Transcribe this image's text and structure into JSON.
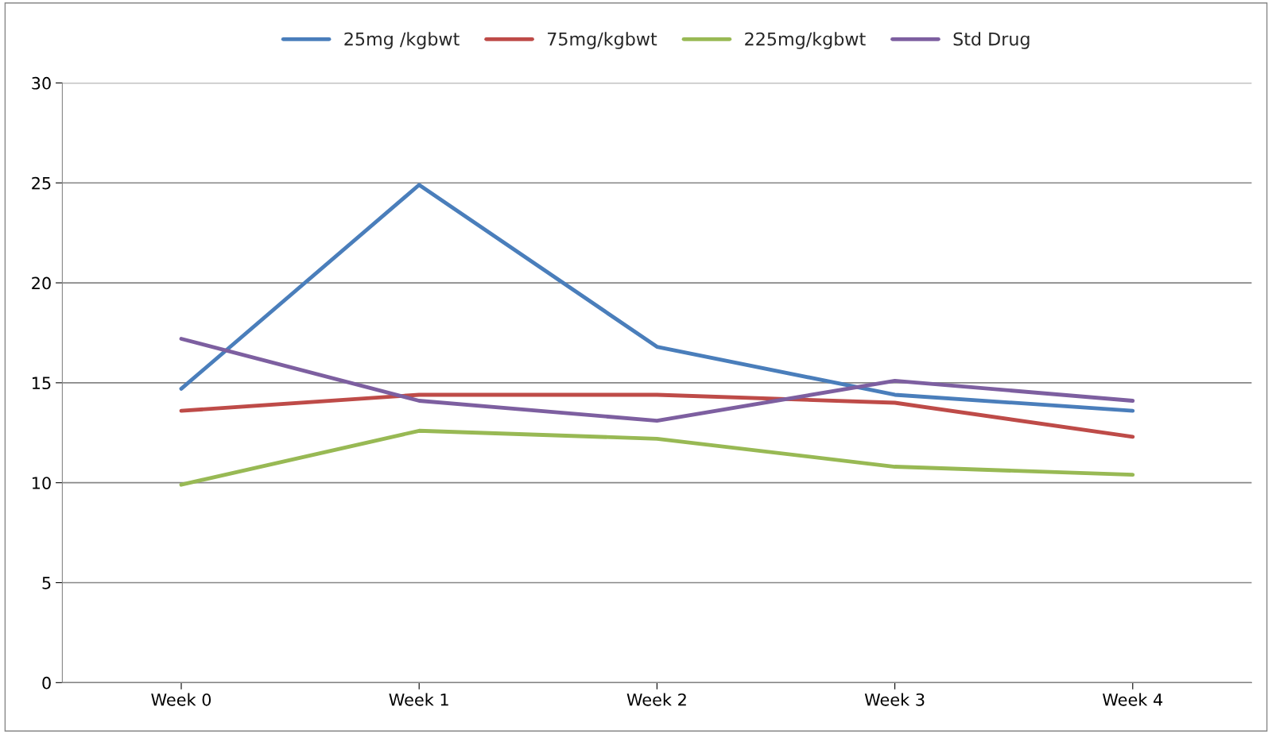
{
  "chart_data": {
    "type": "line",
    "categories": [
      "Week 0",
      "Week 1",
      "Week 2",
      "Week 3",
      "Week 4"
    ],
    "series": [
      {
        "name": "25mg /kgbwt",
        "color": "#4a7ebb",
        "values": [
          14.7,
          24.9,
          16.8,
          14.4,
          13.6
        ]
      },
      {
        "name": "75mg/kgbwt",
        "color": "#be4b48",
        "values": [
          13.6,
          14.4,
          14.4,
          14.0,
          12.3
        ]
      },
      {
        "name": "225mg/kgbwt",
        "color": "#98b954",
        "values": [
          9.9,
          12.6,
          12.2,
          10.8,
          10.4
        ]
      },
      {
        "name": "Std Drug",
        "color": "#7d5fa0",
        "values": [
          17.2,
          14.1,
          13.1,
          15.1,
          14.1
        ]
      }
    ],
    "ylim": [
      0,
      30
    ],
    "yticks": [
      0,
      5,
      10,
      15,
      20,
      25,
      30
    ],
    "grid": "y",
    "legend": "top",
    "marker": "none",
    "line_style": "solid"
  }
}
